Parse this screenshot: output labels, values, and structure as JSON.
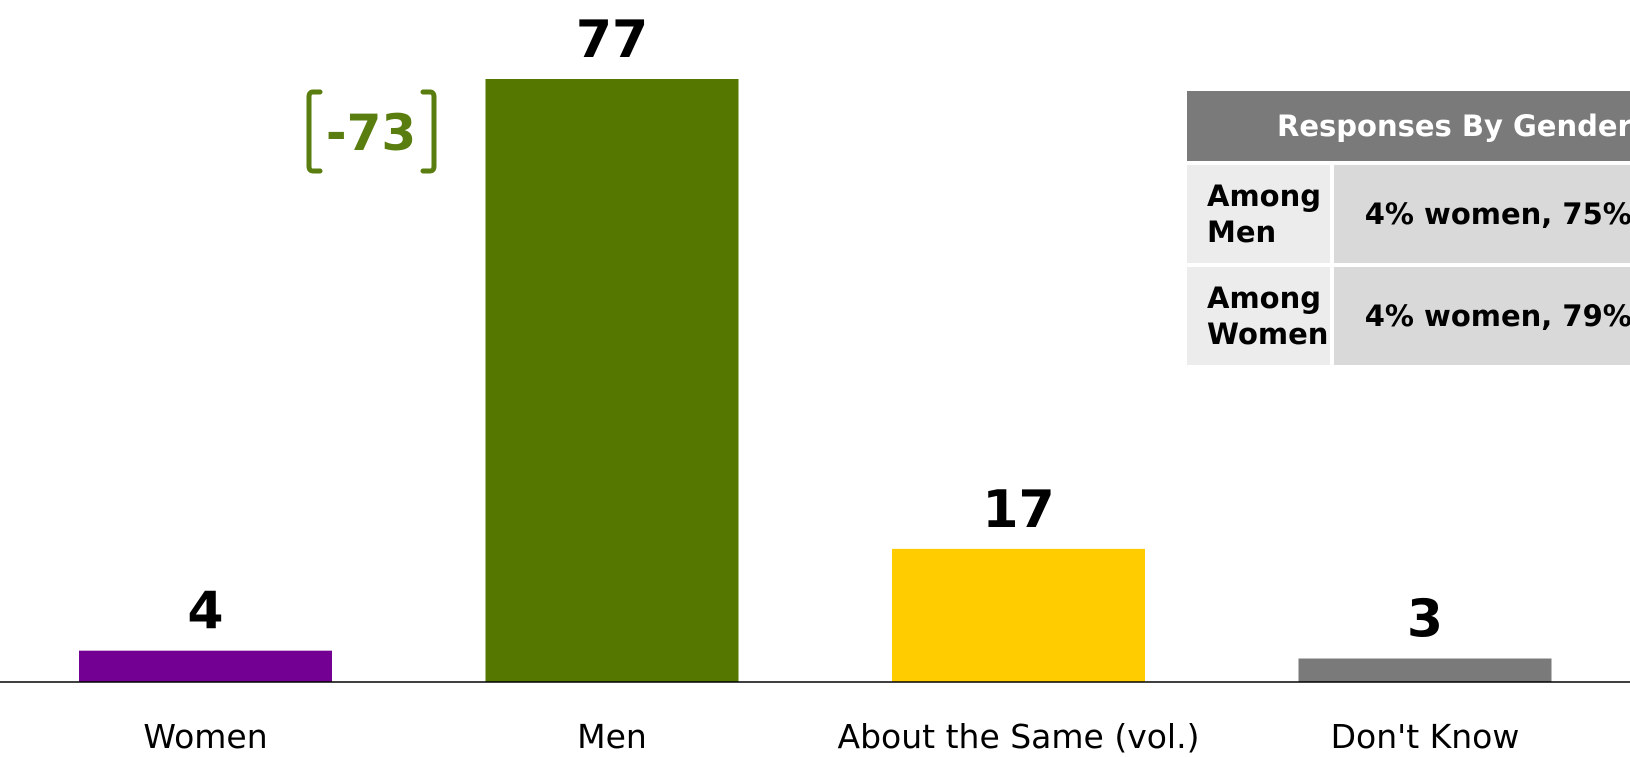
{
  "chart_data": {
    "type": "bar",
    "categories": [
      "Women",
      "Men",
      "About the Same (vol.)",
      "Don't Know"
    ],
    "values": [
      4,
      77,
      17,
      3
    ],
    "value_labels": [
      "4",
      "77",
      "17",
      "3"
    ],
    "colors": [
      "#730093",
      "#557700",
      "#ffcc00",
      "#7a7a7a"
    ],
    "difference_label": "-73",
    "difference_color": "#5a7d0f",
    "ylim": [
      0,
      77
    ],
    "grid": false,
    "legend": "none"
  },
  "table": {
    "header": "Responses By Gender",
    "rows": [
      {
        "label": "Among Men",
        "value": "4% women, 75%"
      },
      {
        "label": "Among Women",
        "value": "4% women, 79%"
      }
    ]
  }
}
